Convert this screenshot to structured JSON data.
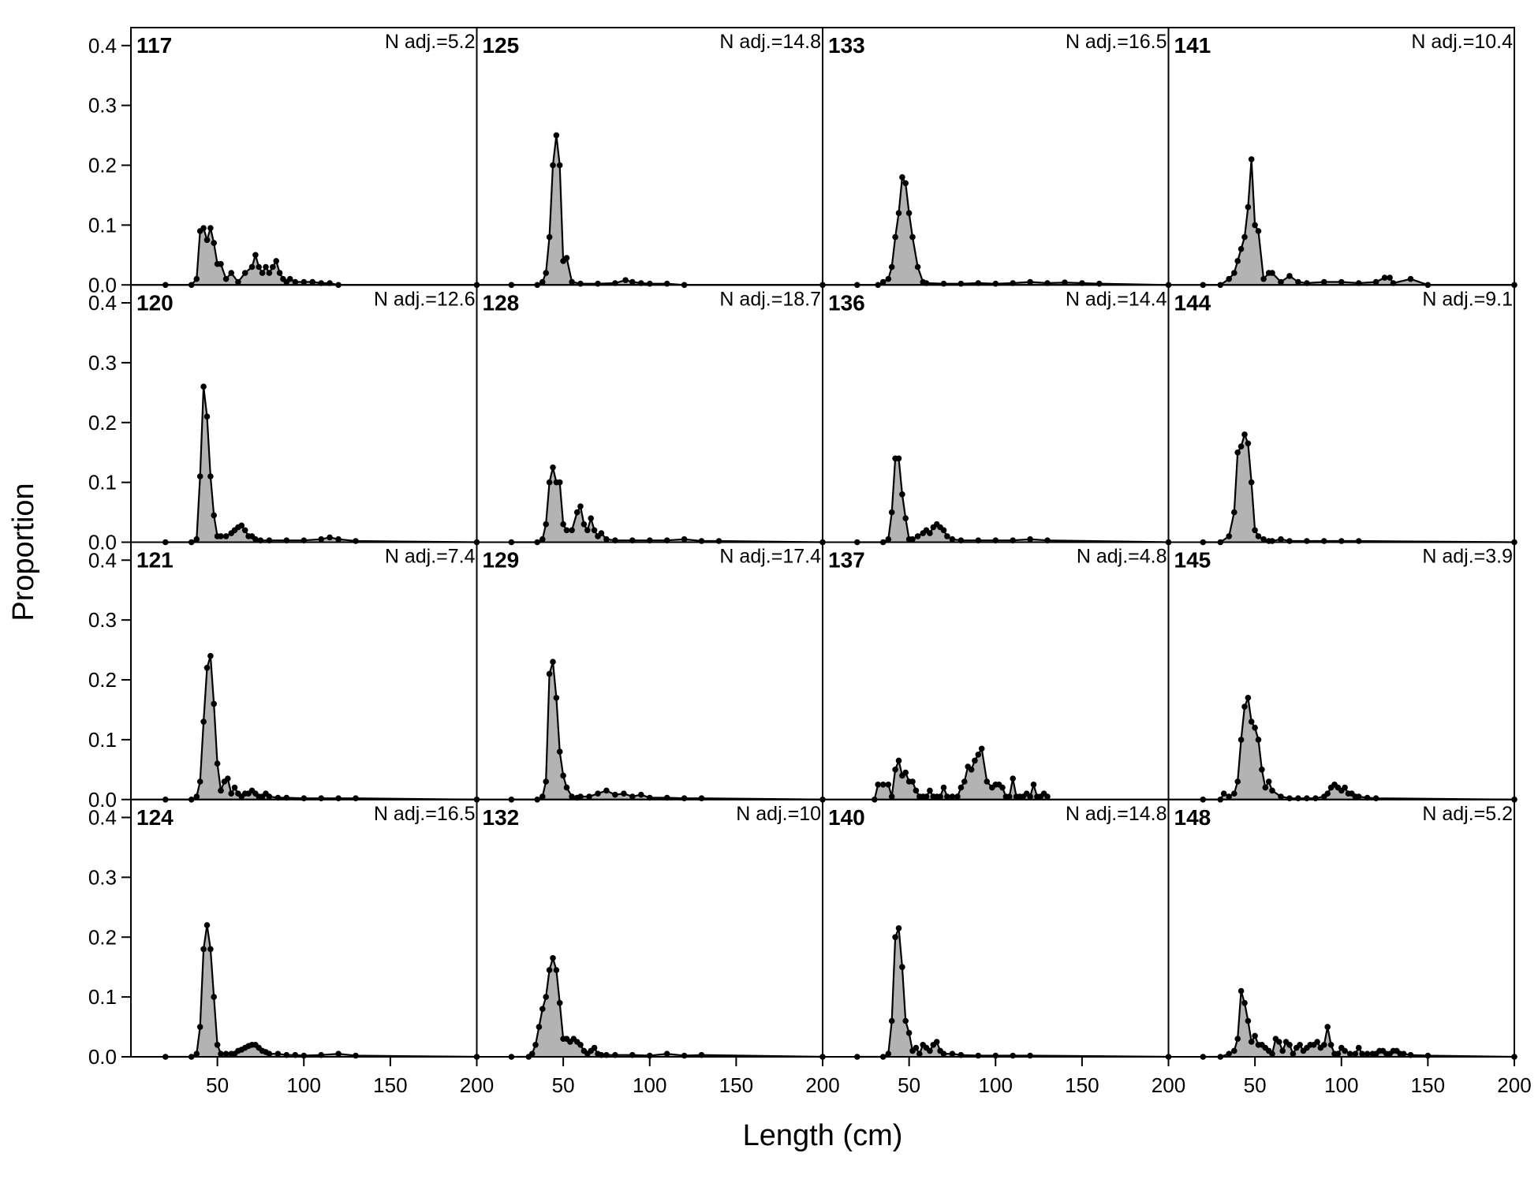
{
  "chart_data": {
    "type": "area",
    "xlabel": "Length (cm)",
    "ylabel": "Proportion",
    "xlim": [
      0,
      200
    ],
    "ylim": [
      0,
      0.43
    ],
    "x_ticks": [
      50,
      100,
      150,
      200
    ],
    "y_ticks": [
      0.0,
      0.1,
      0.2,
      0.3,
      0.4
    ],
    "y_tick_labels": [
      "0.0",
      "0.1",
      "0.2",
      "0.3",
      "0.4"
    ],
    "x_tick_labels": [
      "50",
      "100",
      "150",
      "200"
    ],
    "grid": false,
    "fill_color": "#b3b3b3",
    "line_color": "#000000",
    "layout": {
      "rows": 4,
      "cols": 4
    },
    "panels": [
      {
        "id": "117",
        "nadj": "N adj.=5.2",
        "x": [
          20,
          35,
          38,
          40,
          42,
          44,
          46,
          48,
          50,
          52,
          55,
          58,
          62,
          66,
          70,
          72,
          74,
          76,
          78,
          80,
          82,
          84,
          86,
          88,
          90,
          92,
          95,
          100,
          105,
          110,
          115,
          120,
          200
        ],
        "y": [
          0,
          0,
          0.01,
          0.09,
          0.095,
          0.075,
          0.095,
          0.07,
          0.035,
          0.035,
          0.01,
          0.02,
          0.005,
          0.02,
          0.03,
          0.05,
          0.03,
          0.02,
          0.03,
          0.02,
          0.03,
          0.04,
          0.02,
          0.01,
          0.005,
          0.01,
          0.005,
          0.005,
          0.005,
          0.003,
          0.003,
          0,
          0
        ]
      },
      {
        "id": "125",
        "nadj": "N adj.=14.8",
        "x": [
          20,
          35,
          38,
          40,
          42,
          44,
          46,
          48,
          50,
          52,
          55,
          60,
          70,
          80,
          86,
          90,
          95,
          100,
          110,
          120,
          200
        ],
        "y": [
          0,
          0,
          0.005,
          0.02,
          0.08,
          0.2,
          0.25,
          0.2,
          0.04,
          0.045,
          0.005,
          0.002,
          0.002,
          0.003,
          0.008,
          0.005,
          0.003,
          0.002,
          0.002,
          0,
          0
        ]
      },
      {
        "id": "133",
        "nadj": "N adj.=16.5",
        "x": [
          20,
          32,
          35,
          38,
          40,
          42,
          44,
          46,
          48,
          50,
          52,
          55,
          58,
          60,
          70,
          80,
          90,
          100,
          110,
          120,
          130,
          140,
          150,
          160,
          200
        ],
        "y": [
          0,
          0,
          0.005,
          0.01,
          0.03,
          0.08,
          0.12,
          0.18,
          0.17,
          0.12,
          0.08,
          0.03,
          0.005,
          0.003,
          0.002,
          0.002,
          0.003,
          0.002,
          0.003,
          0.005,
          0.003,
          0.004,
          0.003,
          0.002,
          0
        ]
      },
      {
        "id": "141",
        "nadj": "N adj.=10.4",
        "x": [
          20,
          30,
          35,
          38,
          40,
          42,
          44,
          46,
          48,
          50,
          52,
          55,
          58,
          60,
          65,
          70,
          75,
          80,
          90,
          100,
          110,
          120,
          125,
          128,
          130,
          140,
          150,
          200
        ],
        "y": [
          0,
          0,
          0.01,
          0.02,
          0.04,
          0.06,
          0.08,
          0.13,
          0.21,
          0.1,
          0.09,
          0.01,
          0.02,
          0.02,
          0.005,
          0.015,
          0.005,
          0.003,
          0.005,
          0.005,
          0.003,
          0.005,
          0.012,
          0.012,
          0.003,
          0.01,
          0,
          0
        ]
      },
      {
        "id": "120",
        "nadj": "N adj.=12.6",
        "x": [
          20,
          35,
          38,
          40,
          42,
          44,
          46,
          48,
          50,
          52,
          55,
          58,
          60,
          62,
          64,
          66,
          68,
          70,
          72,
          75,
          80,
          90,
          100,
          110,
          115,
          120,
          130,
          200
        ],
        "y": [
          0,
          0,
          0.005,
          0.11,
          0.26,
          0.21,
          0.11,
          0.045,
          0.01,
          0.01,
          0.01,
          0.015,
          0.02,
          0.025,
          0.028,
          0.02,
          0.01,
          0.01,
          0.005,
          0.003,
          0.003,
          0.003,
          0.003,
          0.005,
          0.008,
          0.005,
          0.002,
          0
        ]
      },
      {
        "id": "128",
        "nadj": "N adj.=18.7",
        "x": [
          20,
          35,
          38,
          40,
          42,
          44,
          46,
          48,
          50,
          52,
          55,
          58,
          60,
          62,
          64,
          66,
          68,
          70,
          72,
          75,
          80,
          90,
          100,
          110,
          120,
          130,
          140,
          200
        ],
        "y": [
          0,
          0,
          0.005,
          0.03,
          0.1,
          0.125,
          0.1,
          0.1,
          0.03,
          0.02,
          0.02,
          0.05,
          0.06,
          0.03,
          0.02,
          0.04,
          0.02,
          0.01,
          0.015,
          0.005,
          0.003,
          0.003,
          0.003,
          0.003,
          0.005,
          0.002,
          0.002,
          0
        ]
      },
      {
        "id": "136",
        "nadj": "N adj.=14.4",
        "x": [
          20,
          35,
          38,
          40,
          42,
          44,
          46,
          48,
          50,
          52,
          55,
          58,
          60,
          62,
          64,
          66,
          68,
          70,
          72,
          75,
          80,
          90,
          100,
          110,
          120,
          130,
          200
        ],
        "y": [
          0,
          0,
          0.005,
          0.05,
          0.14,
          0.14,
          0.08,
          0.04,
          0.005,
          0.005,
          0.01,
          0.015,
          0.02,
          0.015,
          0.025,
          0.03,
          0.025,
          0.02,
          0.01,
          0.005,
          0.003,
          0.003,
          0.003,
          0.003,
          0.005,
          0.003,
          0
        ]
      },
      {
        "id": "144",
        "nadj": "N adj.=9.1",
        "x": [
          20,
          30,
          35,
          38,
          40,
          42,
          44,
          46,
          48,
          50,
          52,
          55,
          58,
          60,
          65,
          70,
          80,
          90,
          100,
          110,
          200
        ],
        "y": [
          0,
          0,
          0.01,
          0.05,
          0.15,
          0.16,
          0.18,
          0.165,
          0.1,
          0.02,
          0.01,
          0.005,
          0.002,
          0.002,
          0.005,
          0.002,
          0.002,
          0.002,
          0.002,
          0.002,
          0
        ]
      },
      {
        "id": "121",
        "nadj": "N adj.=7.4",
        "x": [
          20,
          35,
          38,
          40,
          42,
          44,
          46,
          48,
          50,
          52,
          54,
          56,
          58,
          60,
          62,
          64,
          66,
          68,
          70,
          72,
          74,
          76,
          78,
          80,
          85,
          90,
          100,
          110,
          120,
          130,
          200
        ],
        "y": [
          0,
          0,
          0.005,
          0.03,
          0.13,
          0.22,
          0.24,
          0.16,
          0.06,
          0.015,
          0.03,
          0.035,
          0.01,
          0.02,
          0.01,
          0.005,
          0.01,
          0.01,
          0.015,
          0.01,
          0.005,
          0.005,
          0.01,
          0.005,
          0.003,
          0.003,
          0.002,
          0.002,
          0.002,
          0.002,
          0
        ]
      },
      {
        "id": "129",
        "nadj": "N adj.=17.4",
        "x": [
          20,
          35,
          38,
          40,
          42,
          44,
          46,
          48,
          50,
          52,
          55,
          58,
          60,
          65,
          70,
          75,
          80,
          85,
          90,
          95,
          100,
          110,
          120,
          130,
          200
        ],
        "y": [
          0,
          0,
          0.005,
          0.03,
          0.21,
          0.23,
          0.17,
          0.08,
          0.04,
          0.02,
          0.005,
          0.003,
          0.005,
          0.005,
          0.01,
          0.015,
          0.008,
          0.01,
          0.005,
          0.008,
          0.003,
          0.003,
          0.002,
          0.002,
          0
        ]
      },
      {
        "id": "137",
        "nadj": "N adj.=4.8",
        "x": [
          30,
          32,
          35,
          38,
          40,
          42,
          44,
          46,
          48,
          50,
          52,
          54,
          56,
          58,
          60,
          62,
          64,
          66,
          68,
          70,
          72,
          75,
          78,
          80,
          82,
          84,
          86,
          88,
          90,
          92,
          95,
          98,
          100,
          102,
          104,
          106,
          108,
          110,
          112,
          114,
          116,
          118,
          120,
          122,
          124,
          126,
          128,
          130
        ],
        "y": [
          0,
          0.025,
          0.025,
          0.025,
          0.005,
          0.05,
          0.065,
          0.04,
          0.045,
          0.03,
          0.03,
          0.015,
          0.005,
          0.005,
          0.005,
          0.015,
          0.005,
          0.005,
          0.005,
          0.02,
          0.005,
          0.005,
          0.005,
          0.02,
          0.03,
          0.055,
          0.05,
          0.065,
          0.075,
          0.085,
          0.03,
          0.02,
          0.025,
          0.025,
          0.02,
          0.005,
          0.005,
          0.035,
          0.005,
          0.005,
          0.005,
          0.01,
          0.005,
          0.025,
          0.005,
          0.005,
          0.01,
          0.005
        ]
      },
      {
        "id": "145",
        "nadj": "N adj.=3.9",
        "x": [
          20,
          30,
          32,
          35,
          38,
          40,
          42,
          44,
          46,
          48,
          50,
          52,
          54,
          56,
          58,
          60,
          65,
          70,
          75,
          80,
          85,
          90,
          92,
          94,
          96,
          98,
          100,
          102,
          104,
          106,
          108,
          110,
          115,
          120,
          200
        ],
        "y": [
          0,
          0,
          0.01,
          0.005,
          0.01,
          0.03,
          0.1,
          0.155,
          0.17,
          0.13,
          0.12,
          0.1,
          0.05,
          0.02,
          0.03,
          0.015,
          0.005,
          0.002,
          0.002,
          0.002,
          0.002,
          0.005,
          0.01,
          0.02,
          0.025,
          0.02,
          0.015,
          0.02,
          0.01,
          0.01,
          0.005,
          0.005,
          0.003,
          0.002,
          0
        ]
      },
      {
        "id": "124",
        "nadj": "N adj.=16.5",
        "x": [
          20,
          35,
          38,
          40,
          42,
          44,
          46,
          48,
          50,
          52,
          55,
          58,
          60,
          62,
          64,
          66,
          68,
          70,
          72,
          74,
          76,
          78,
          80,
          85,
          90,
          95,
          100,
          110,
          120,
          130,
          200
        ],
        "y": [
          0,
          0,
          0.005,
          0.05,
          0.18,
          0.22,
          0.18,
          0.1,
          0.02,
          0.005,
          0.005,
          0.005,
          0.005,
          0.01,
          0.012,
          0.015,
          0.018,
          0.02,
          0.02,
          0.015,
          0.01,
          0.008,
          0.005,
          0.005,
          0.003,
          0.003,
          0.002,
          0.003,
          0.005,
          0.002,
          0
        ]
      },
      {
        "id": "132",
        "nadj": "N adj.=10",
        "x": [
          20,
          30,
          32,
          34,
          36,
          38,
          40,
          42,
          44,
          46,
          48,
          50,
          52,
          54,
          56,
          58,
          60,
          62,
          64,
          66,
          68,
          70,
          72,
          75,
          80,
          90,
          100,
          110,
          120,
          130,
          200
        ],
        "y": [
          0,
          0,
          0.005,
          0.02,
          0.05,
          0.08,
          0.1,
          0.145,
          0.165,
          0.145,
          0.09,
          0.03,
          0.03,
          0.025,
          0.03,
          0.025,
          0.02,
          0.01,
          0.005,
          0.01,
          0.015,
          0.005,
          0.003,
          0.003,
          0.003,
          0.003,
          0.002,
          0.005,
          0.002,
          0.003,
          0
        ]
      },
      {
        "id": "140",
        "nadj": "N adj.=14.8",
        "x": [
          20,
          35,
          38,
          40,
          42,
          44,
          46,
          48,
          50,
          52,
          54,
          56,
          58,
          60,
          62,
          64,
          66,
          68,
          70,
          75,
          80,
          90,
          100,
          110,
          120,
          200
        ],
        "y": [
          0,
          0,
          0.005,
          0.06,
          0.2,
          0.215,
          0.15,
          0.06,
          0.04,
          0.01,
          0.015,
          0.005,
          0.02,
          0.015,
          0.01,
          0.02,
          0.025,
          0.01,
          0.005,
          0.005,
          0.003,
          0.002,
          0.002,
          0.002,
          0.002,
          0
        ]
      },
      {
        "id": "148",
        "nadj": "N adj.=5.2",
        "x": [
          20,
          30,
          35,
          38,
          40,
          42,
          44,
          46,
          48,
          50,
          52,
          54,
          56,
          58,
          60,
          62,
          64,
          66,
          68,
          70,
          72,
          74,
          76,
          78,
          80,
          82,
          84,
          86,
          88,
          90,
          92,
          94,
          96,
          98,
          100,
          102,
          105,
          108,
          110,
          112,
          115,
          118,
          120,
          122,
          124,
          126,
          128,
          130,
          132,
          134,
          136,
          140,
          150,
          200
        ],
        "y": [
          0,
          0,
          0.005,
          0.01,
          0.03,
          0.11,
          0.09,
          0.06,
          0.025,
          0.035,
          0.02,
          0.02,
          0.015,
          0.01,
          0.005,
          0.03,
          0.025,
          0.01,
          0.025,
          0.02,
          0.005,
          0.015,
          0.02,
          0.01,
          0.015,
          0.02,
          0.02,
          0.025,
          0.015,
          0.02,
          0.05,
          0.02,
          0.005,
          0.005,
          0.015,
          0.01,
          0.005,
          0.005,
          0.015,
          0.005,
          0.005,
          0.005,
          0.005,
          0.01,
          0.01,
          0.005,
          0.005,
          0.01,
          0.01,
          0.005,
          0.005,
          0.003,
          0.002,
          0
        ]
      }
    ]
  }
}
